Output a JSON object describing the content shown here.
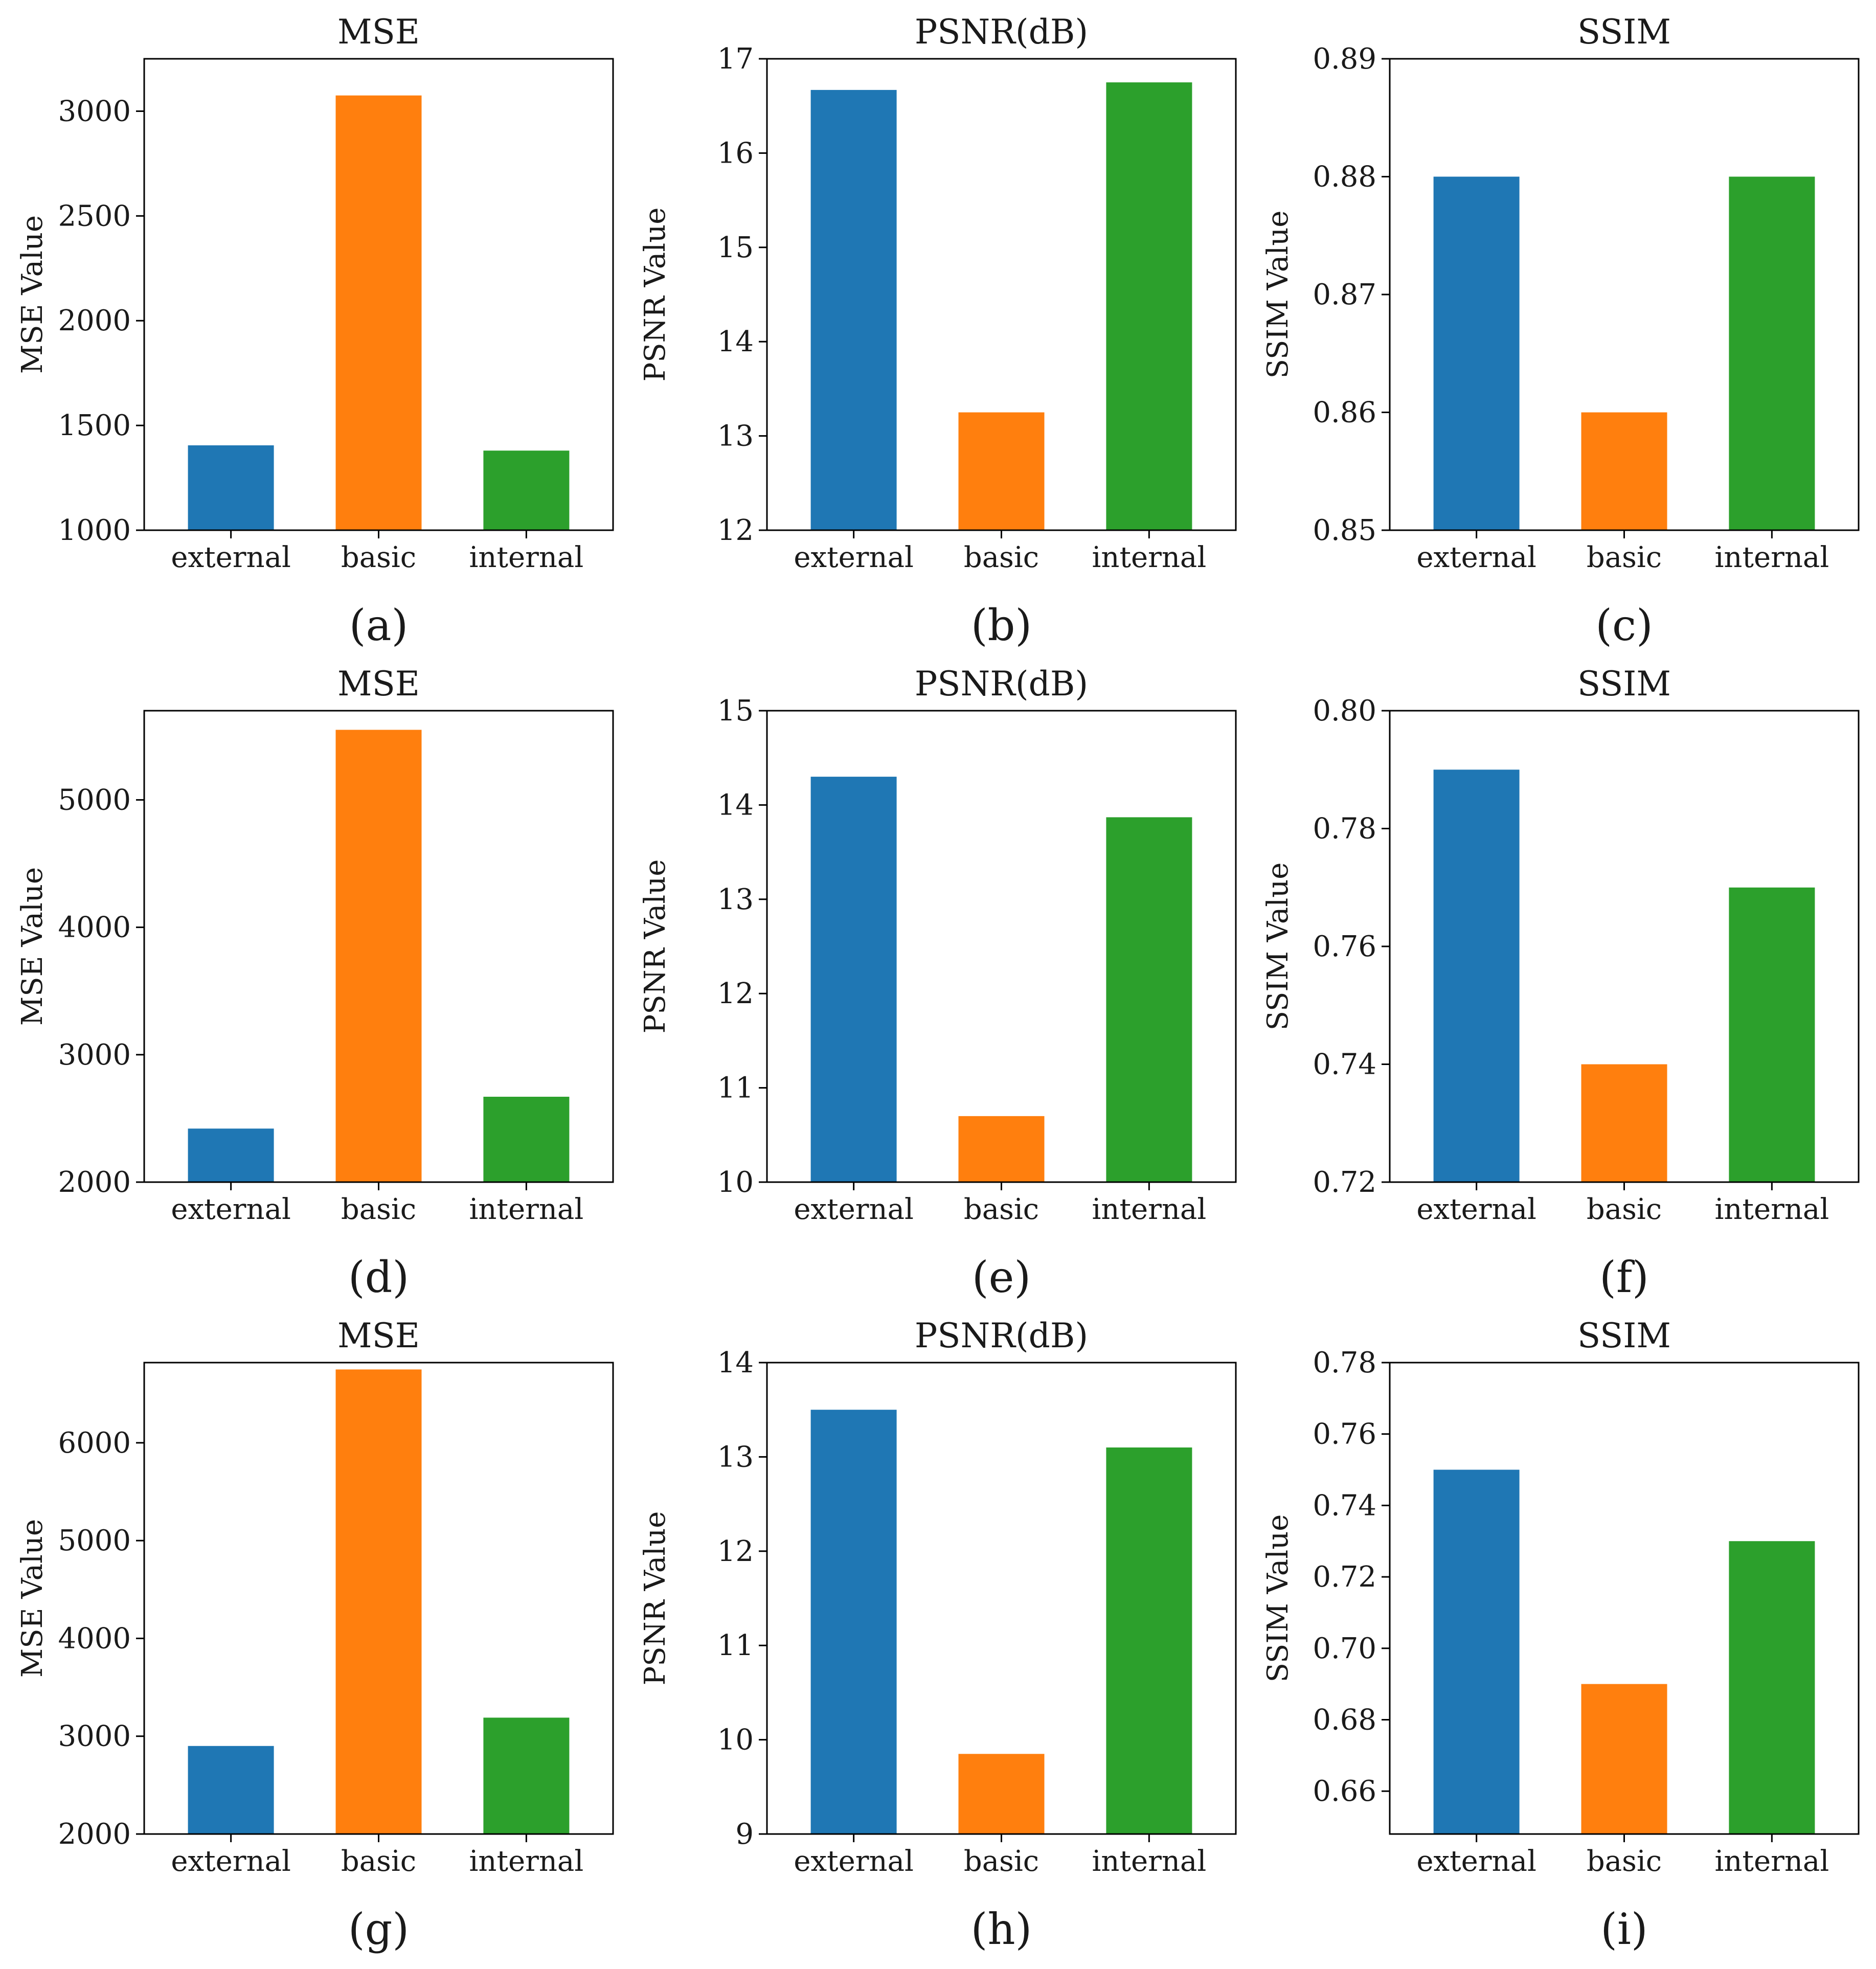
{
  "figure_labels": [
    "(a)",
    "(b)",
    "(c)",
    "(d)",
    "(e)",
    "(f)",
    "(g)",
    "(h)",
    "(i)"
  ],
  "colors": {
    "external": "#1f77b4",
    "basic": "#ff7f0e",
    "internal": "#2ca02c"
  },
  "chart_data": [
    {
      "type": "bar",
      "panel": "(a)",
      "title": "MSE",
      "xlabel": "",
      "ylabel": "MSE Value",
      "categories": [
        "external",
        "basic",
        "internal"
      ],
      "values": [
        1405,
        3075,
        1380
      ],
      "ylim": [
        1000,
        3250
      ],
      "yticks": [
        1000,
        1500,
        2000,
        2500,
        3000
      ],
      "ytick_labels": [
        "1000",
        "1500",
        "2000",
        "2500",
        "3000"
      ],
      "grid": false
    },
    {
      "type": "bar",
      "panel": "(b)",
      "title": "PSNR(dB)",
      "xlabel": "",
      "ylabel": "PSNR Value",
      "categories": [
        "external",
        "basic",
        "internal"
      ],
      "values": [
        16.67,
        13.25,
        16.75
      ],
      "ylim": [
        12,
        17
      ],
      "yticks": [
        12,
        13,
        14,
        15,
        16,
        17
      ],
      "ytick_labels": [
        "12",
        "13",
        "14",
        "15",
        "16",
        "17"
      ],
      "grid": false
    },
    {
      "type": "bar",
      "panel": "(c)",
      "title": "SSIM",
      "xlabel": "",
      "ylabel": "SSIM Value",
      "categories": [
        "external",
        "basic",
        "internal"
      ],
      "values": [
        0.88,
        0.86,
        0.88
      ],
      "ylim": [
        0.85,
        0.89
      ],
      "yticks": [
        0.85,
        0.86,
        0.87,
        0.88,
        0.89
      ],
      "ytick_labels": [
        "0.85",
        "0.86",
        "0.87",
        "0.88",
        "0.89"
      ],
      "grid": false
    },
    {
      "type": "bar",
      "panel": "(d)",
      "title": "MSE",
      "xlabel": "",
      "ylabel": "MSE Value",
      "categories": [
        "external",
        "basic",
        "internal"
      ],
      "values": [
        2420,
        5550,
        2670
      ],
      "ylim": [
        2000,
        5700
      ],
      "yticks": [
        2000,
        3000,
        4000,
        5000
      ],
      "ytick_labels": [
        "2000",
        "3000",
        "4000",
        "5000"
      ],
      "grid": false
    },
    {
      "type": "bar",
      "panel": "(e)",
      "title": "PSNR(dB)",
      "xlabel": "",
      "ylabel": "PSNR Value",
      "categories": [
        "external",
        "basic",
        "internal"
      ],
      "values": [
        14.3,
        10.7,
        13.87
      ],
      "ylim": [
        10,
        15
      ],
      "yticks": [
        10,
        11,
        12,
        13,
        14,
        15
      ],
      "ytick_labels": [
        "10",
        "11",
        "12",
        "13",
        "14",
        "15"
      ],
      "grid": false
    },
    {
      "type": "bar",
      "panel": "(f)",
      "title": "SSIM",
      "xlabel": "",
      "ylabel": "SSIM Value",
      "categories": [
        "external",
        "basic",
        "internal"
      ],
      "values": [
        0.79,
        0.74,
        0.77
      ],
      "ylim": [
        0.72,
        0.8
      ],
      "yticks": [
        0.72,
        0.74,
        0.76,
        0.78,
        0.8
      ],
      "ytick_labels": [
        "0.72",
        "0.74",
        "0.76",
        "0.78",
        "0.80"
      ],
      "grid": false
    },
    {
      "type": "bar",
      "panel": "(g)",
      "title": "MSE",
      "xlabel": "",
      "ylabel": "MSE Value",
      "categories": [
        "external",
        "basic",
        "internal"
      ],
      "values": [
        2900,
        6750,
        3190
      ],
      "ylim": [
        2000,
        6820
      ],
      "yticks": [
        2000,
        3000,
        4000,
        5000,
        6000
      ],
      "ytick_labels": [
        "2000",
        "3000",
        "4000",
        "5000",
        "6000"
      ],
      "grid": false
    },
    {
      "type": "bar",
      "panel": "(h)",
      "title": "PSNR(dB)",
      "xlabel": "",
      "ylabel": "PSNR Value",
      "categories": [
        "external",
        "basic",
        "internal"
      ],
      "values": [
        13.5,
        9.85,
        13.1
      ],
      "ylim": [
        9,
        14
      ],
      "yticks": [
        9,
        10,
        11,
        12,
        13,
        14
      ],
      "ytick_labels": [
        "9",
        "10",
        "11",
        "12",
        "13",
        "14"
      ],
      "grid": false
    },
    {
      "type": "bar",
      "panel": "(i)",
      "title": "SSIM",
      "xlabel": "",
      "ylabel": "SSIM Value",
      "categories": [
        "external",
        "basic",
        "internal"
      ],
      "values": [
        0.75,
        0.69,
        0.73
      ],
      "ylim": [
        0.648,
        0.78
      ],
      "yticks": [
        0.66,
        0.68,
        0.7,
        0.72,
        0.74,
        0.76,
        0.78
      ],
      "ytick_labels": [
        "0.66",
        "0.68",
        "0.70",
        "0.72",
        "0.74",
        "0.76",
        "0.78"
      ],
      "grid": false
    }
  ]
}
